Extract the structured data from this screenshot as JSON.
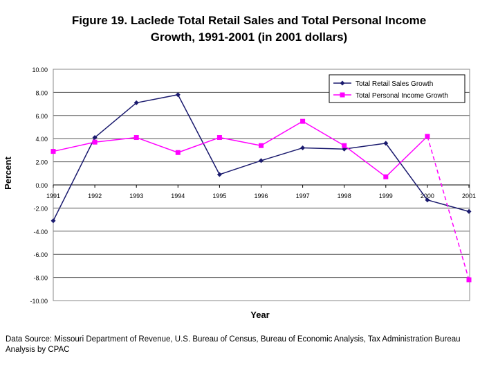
{
  "title_line1": "Figure 19.  Laclede Total Retail Sales and Total Personal Income",
  "title_line2": "Growth, 1991-2001 (in 2001 dollars)",
  "source_line1": "Data Source: Missouri Department of Revenue, U.S. Bureau of Census, Bureau of Economic Analysis, Tax Administration Bureau",
  "source_line2": "Analysis by CPAC",
  "chart_data": {
    "type": "line",
    "title": "Figure 19.  Laclede Total Retail Sales and Total Personal Income Growth, 1991-2001 (in 2001 dollars)",
    "xlabel": "Year",
    "ylabel": "Percent",
    "ylim": [
      -10,
      10
    ],
    "yticks": [
      "10.00",
      "8.00",
      "6.00",
      "4.00",
      "2.00",
      "0.00",
      "-2.00",
      "-4.00",
      "-6.00",
      "-8.00",
      "-10.00"
    ],
    "categories": [
      "1991",
      "1992",
      "1993",
      "1994",
      "1995",
      "1996",
      "1997",
      "1998",
      "1999",
      "2000",
      "2001"
    ],
    "legend_position": "top-right",
    "series": [
      {
        "name": "Total Retail Sales Growth",
        "color": "#1a1a6e",
        "marker": "diamond",
        "dashed_segments": [],
        "values": [
          -3.1,
          4.1,
          7.1,
          7.8,
          0.9,
          2.1,
          3.2,
          3.1,
          3.6,
          -1.3,
          -2.3
        ]
      },
      {
        "name": "Total Personal Income Growth",
        "color": "#ff00ff",
        "marker": "square",
        "dashed_segments": [
          9
        ],
        "values": [
          2.9,
          3.7,
          4.1,
          2.8,
          4.1,
          3.4,
          5.5,
          3.4,
          0.7,
          4.2,
          -8.2
        ]
      }
    ]
  }
}
